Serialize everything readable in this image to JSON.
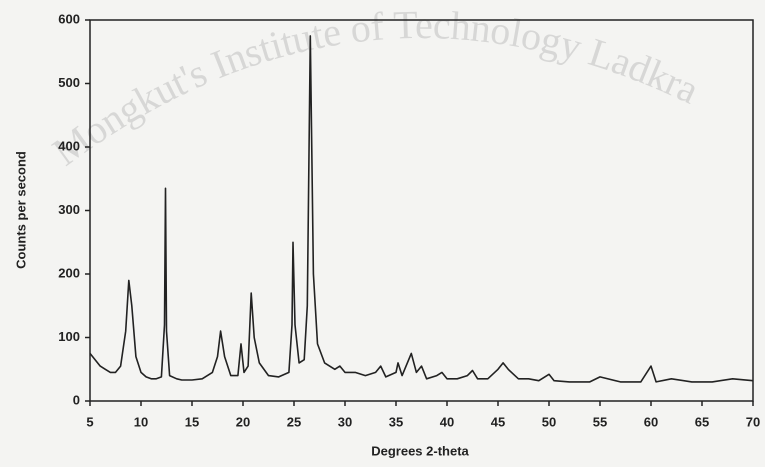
{
  "chart_data": {
    "type": "line",
    "xlabel": "Degrees 2-theta",
    "ylabel": "Counts per second",
    "watermark": "Mongkut's Institute of Technology Ladkra",
    "color": "#222222",
    "x": [
      5,
      5.5,
      6,
      6.5,
      7,
      7.5,
      8,
      8.5,
      8.8,
      9.1,
      9.5,
      10,
      10.5,
      11,
      11.5,
      12,
      12.3,
      12.4,
      12.5,
      12.8,
      13.5,
      14,
      15,
      16,
      17,
      17.5,
      17.8,
      18.2,
      18.8,
      19.5,
      19.8,
      20.1,
      20.5,
      20.8,
      21.1,
      21.6,
      22.5,
      23.5,
      24.5,
      24.8,
      24.9,
      25.1,
      25.5,
      26,
      26.3,
      26.6,
      26.9,
      27.3,
      28,
      29,
      29.5,
      30,
      31,
      32,
      33,
      33.5,
      34,
      35,
      35.2,
      35.6,
      36.5,
      37,
      37.5,
      38,
      39,
      39.5,
      40,
      41,
      42,
      42.5,
      43,
      44,
      45,
      45.5,
      46,
      47,
      48,
      49,
      50,
      50.5,
      52,
      54,
      55,
      57,
      59,
      60,
      60.5,
      62,
      64,
      66,
      68,
      70
    ],
    "values": [
      75,
      65,
      55,
      50,
      45,
      45,
      55,
      110,
      190,
      150,
      70,
      45,
      38,
      35,
      35,
      38,
      120,
      335,
      110,
      40,
      35,
      33,
      33,
      35,
      45,
      70,
      110,
      70,
      40,
      40,
      90,
      45,
      55,
      170,
      100,
      60,
      40,
      38,
      45,
      120,
      250,
      120,
      60,
      65,
      150,
      575,
      200,
      90,
      60,
      50,
      55,
      45,
      45,
      40,
      45,
      55,
      38,
      45,
      60,
      40,
      75,
      45,
      55,
      35,
      40,
      45,
      35,
      35,
      40,
      48,
      35,
      35,
      50,
      60,
      50,
      35,
      35,
      32,
      42,
      32,
      30,
      30,
      38,
      30,
      30,
      55,
      30,
      35,
      30,
      30,
      35,
      32
    ],
    "xlim": [
      5,
      70
    ],
    "xticks": [
      5,
      10,
      15,
      20,
      25,
      30,
      35,
      40,
      45,
      50,
      55,
      60,
      65,
      70
    ],
    "ylim": [
      0,
      600
    ],
    "yticks": [
      0,
      100,
      200,
      300,
      400,
      500,
      600
    ],
    "grid": false
  }
}
